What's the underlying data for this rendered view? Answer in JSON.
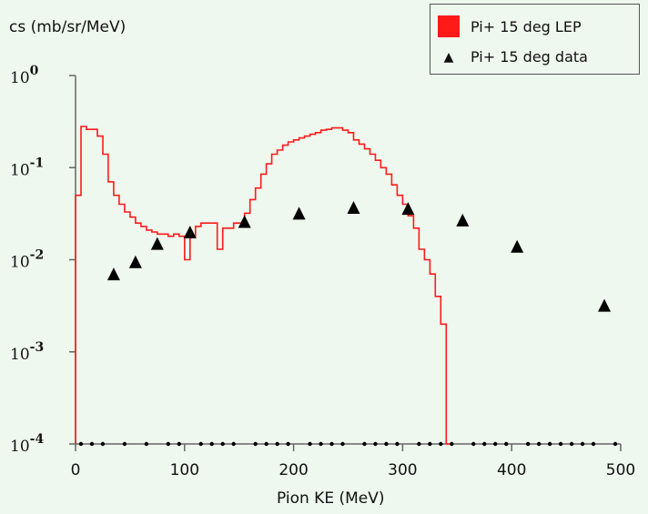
{
  "chart_data": {
    "type": "line",
    "ylabel": "cs (mb/sr/MeV)",
    "xlabel": "Pion KE (MeV)",
    "xlim": [
      0,
      500
    ],
    "ylim": [
      0.0001,
      1
    ],
    "yscale": "log",
    "x_ticks": [
      0,
      100,
      200,
      300,
      400,
      500
    ],
    "x_tick_labels": [
      "0",
      "100",
      "200",
      "300",
      "400",
      "500"
    ],
    "y_tick_labels": [
      {
        "base": "10",
        "exp": "0",
        "value": 1
      },
      {
        "base": "10",
        "exp": "-1",
        "value": 0.1
      },
      {
        "base": "10",
        "exp": "-2",
        "value": 0.01
      },
      {
        "base": "10",
        "exp": "-3",
        "value": 0.001
      },
      {
        "base": "10",
        "exp": "-4",
        "value": 0.0001
      }
    ],
    "legend": {
      "position": "top-right",
      "entries": [
        "Pi+ 15 deg LEP",
        "Pi+ 15 deg data"
      ]
    },
    "series": [
      {
        "name": "Pi+ 15 deg LEP",
        "kind": "step",
        "color": "#ff1a1a",
        "bin_edges": [
          0,
          5,
          10,
          20,
          25,
          30,
          35,
          40,
          45,
          50,
          55,
          60,
          65,
          70,
          75,
          80,
          85,
          90,
          95,
          100,
          105,
          110,
          115,
          120,
          125,
          130,
          135,
          140,
          145,
          150,
          155,
          160,
          165,
          170,
          175,
          180,
          185,
          190,
          195,
          200,
          205,
          210,
          215,
          220,
          225,
          230,
          235,
          240,
          245,
          250,
          255,
          260,
          265,
          270,
          275,
          280,
          285,
          290,
          295,
          300,
          305,
          310,
          315,
          320,
          325,
          330,
          335,
          340,
          345
        ],
        "values": [
          0.05,
          0.28,
          0.26,
          0.22,
          0.14,
          0.07,
          0.05,
          0.04,
          0.033,
          0.029,
          0.025,
          0.023,
          0.021,
          0.02,
          0.019,
          0.019,
          0.018,
          0.019,
          0.018,
          0.01,
          0.018,
          0.023,
          0.025,
          0.025,
          0.025,
          0.013,
          0.022,
          0.022,
          0.025,
          0.025,
          0.032,
          0.045,
          0.06,
          0.085,
          0.11,
          0.14,
          0.155,
          0.175,
          0.19,
          0.2,
          0.21,
          0.22,
          0.23,
          0.24,
          0.255,
          0.26,
          0.27,
          0.27,
          0.255,
          0.24,
          0.2,
          0.18,
          0.16,
          0.14,
          0.12,
          0.1,
          0.085,
          0.065,
          0.05,
          0.04,
          0.03,
          0.022,
          0.013,
          0.01,
          0.007,
          0.004,
          0.002,
          0.0001
        ]
      },
      {
        "name": "Pi+ 15 deg data",
        "kind": "scatter",
        "marker": "triangle",
        "color": "#000000",
        "x": [
          35,
          55,
          75,
          105,
          155,
          205,
          255,
          305,
          355,
          405,
          485
        ],
        "y": [
          0.007,
          0.0095,
          0.015,
          0.02,
          0.026,
          0.032,
          0.037,
          0.036,
          0.027,
          0.014,
          0.0032
        ]
      },
      {
        "kind": "scatter",
        "marker": "dot",
        "color": "#000000",
        "x": [
          5,
          15,
          25,
          45,
          65,
          85,
          95,
          115,
          125,
          135,
          145,
          165,
          175,
          185,
          195,
          215,
          225,
          235,
          245,
          265,
          275,
          285,
          295,
          315,
          325,
          335,
          345,
          365,
          375,
          385,
          395,
          415,
          425,
          435,
          445,
          455,
          465,
          475,
          495
        ],
        "y_level": 0.0001
      }
    ]
  }
}
